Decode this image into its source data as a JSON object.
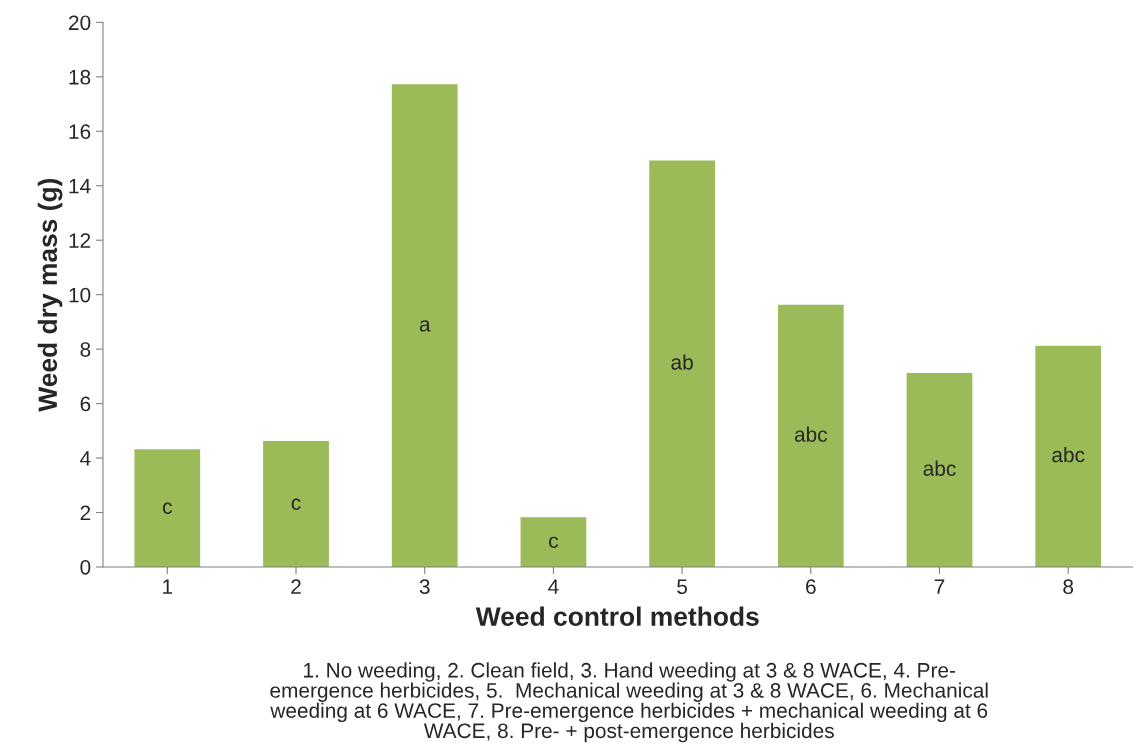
{
  "chart_data": {
    "type": "bar",
    "xlabel": "Weed control methods",
    "ylabel": "Weed dry mass (g)",
    "categories": [
      "1",
      "2",
      "3",
      "4",
      "5",
      "6",
      "7",
      "8"
    ],
    "values": [
      4.3,
      4.6,
      17.7,
      1.8,
      14.9,
      9.6,
      7.1,
      8.1
    ],
    "color": "#9bbb59",
    "ylim": [
      0,
      20
    ],
    "yticks": [
      0,
      2,
      4,
      6,
      8,
      10,
      12,
      14,
      16,
      18,
      20
    ],
    "grid": false,
    "annotations": [
      "c",
      "c",
      "a",
      "c",
      "ab",
      "abc",
      "abc",
      "abc",
      "1. No weeding, 2. Clean field, 3. Hand weeding at 3 & 8 WACE, 4. Pre-\nemergence herbicides, 5.  Mechanical weeding at 3 & 8 WACE, 6. Mechanical\nweeding at 6 WACE, 7. Pre-emergence herbicides + mechanical weeding at 6\nWACE, 8. Pre- + post-emergence herbicides"
    ]
  }
}
